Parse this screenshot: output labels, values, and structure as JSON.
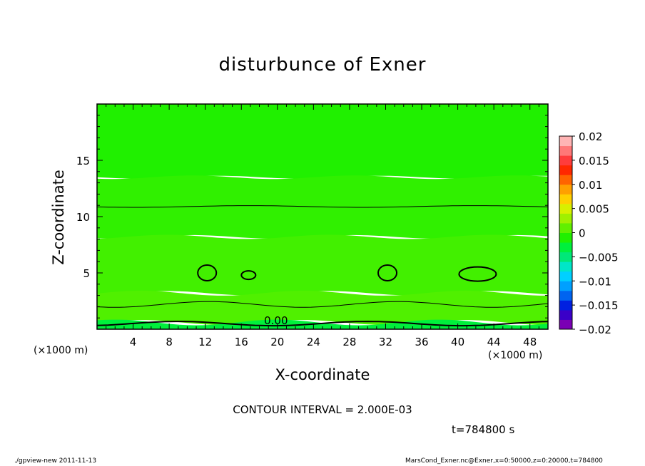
{
  "chart_data": {
    "type": "heatmap",
    "title": "disturbunce of Exner",
    "xlabel": "X-coordinate",
    "ylabel": "Z-coordinate",
    "x_unit_label": "(×1000 m)",
    "x_ticks": [
      4,
      8,
      12,
      16,
      20,
      24,
      28,
      32,
      36,
      40,
      44,
      48
    ],
    "y_ticks": [
      5,
      10,
      15
    ],
    "xlim": [
      0,
      50
    ],
    "ylim": [
      0,
      20
    ],
    "contour_interval_text": "CONTOUR INTERVAL = 2.000E-03",
    "contour_label": "0.00",
    "time_text": "t=784800 s",
    "colorbar": {
      "ticks": [
        "0.02",
        "0.015",
        "0.01",
        "0.005",
        "0",
        "−0.005",
        "−0.01",
        "−0.015",
        "−0.02"
      ],
      "range": [
        -0.02,
        0.02
      ],
      "colors": [
        "#7a00b4",
        "#3a00c8",
        "#0020e0",
        "#0064f0",
        "#00a0ff",
        "#00d0ff",
        "#00e6c8",
        "#00e878",
        "#00f03c",
        "#20f000",
        "#60f000",
        "#a0f000",
        "#d8f000",
        "#ffd000",
        "#ffa000",
        "#ff6400",
        "#ff2800",
        "#ff3c3c",
        "#ff7878",
        "#ffb4b4"
      ]
    },
    "bands": [
      {
        "z_range": [
          0,
          0.6
        ],
        "color": "#00f03c"
      },
      {
        "z_range": [
          0.6,
          3.2
        ],
        "color": "#50f000"
      },
      {
        "z_range": [
          3.2,
          8.2
        ],
        "color": "#42f000"
      },
      {
        "z_range": [
          8.2,
          13.5
        ],
        "color": "#30f000"
      },
      {
        "z_range": [
          13.5,
          20
        ],
        "color": "#20f000"
      }
    ],
    "closed_contours": [
      {
        "x": 12.2,
        "z": 5.0
      },
      {
        "x": 16.8,
        "z": 4.8
      },
      {
        "x": 32.2,
        "z": 5.0
      },
      {
        "x": 42.2,
        "z": 4.9
      }
    ]
  },
  "footer": {
    "left": "./gpview-new  2011-11-13",
    "right": "MarsCond_Exner.nc@Exner,x=0:50000,z=0:20000,t=784800"
  }
}
